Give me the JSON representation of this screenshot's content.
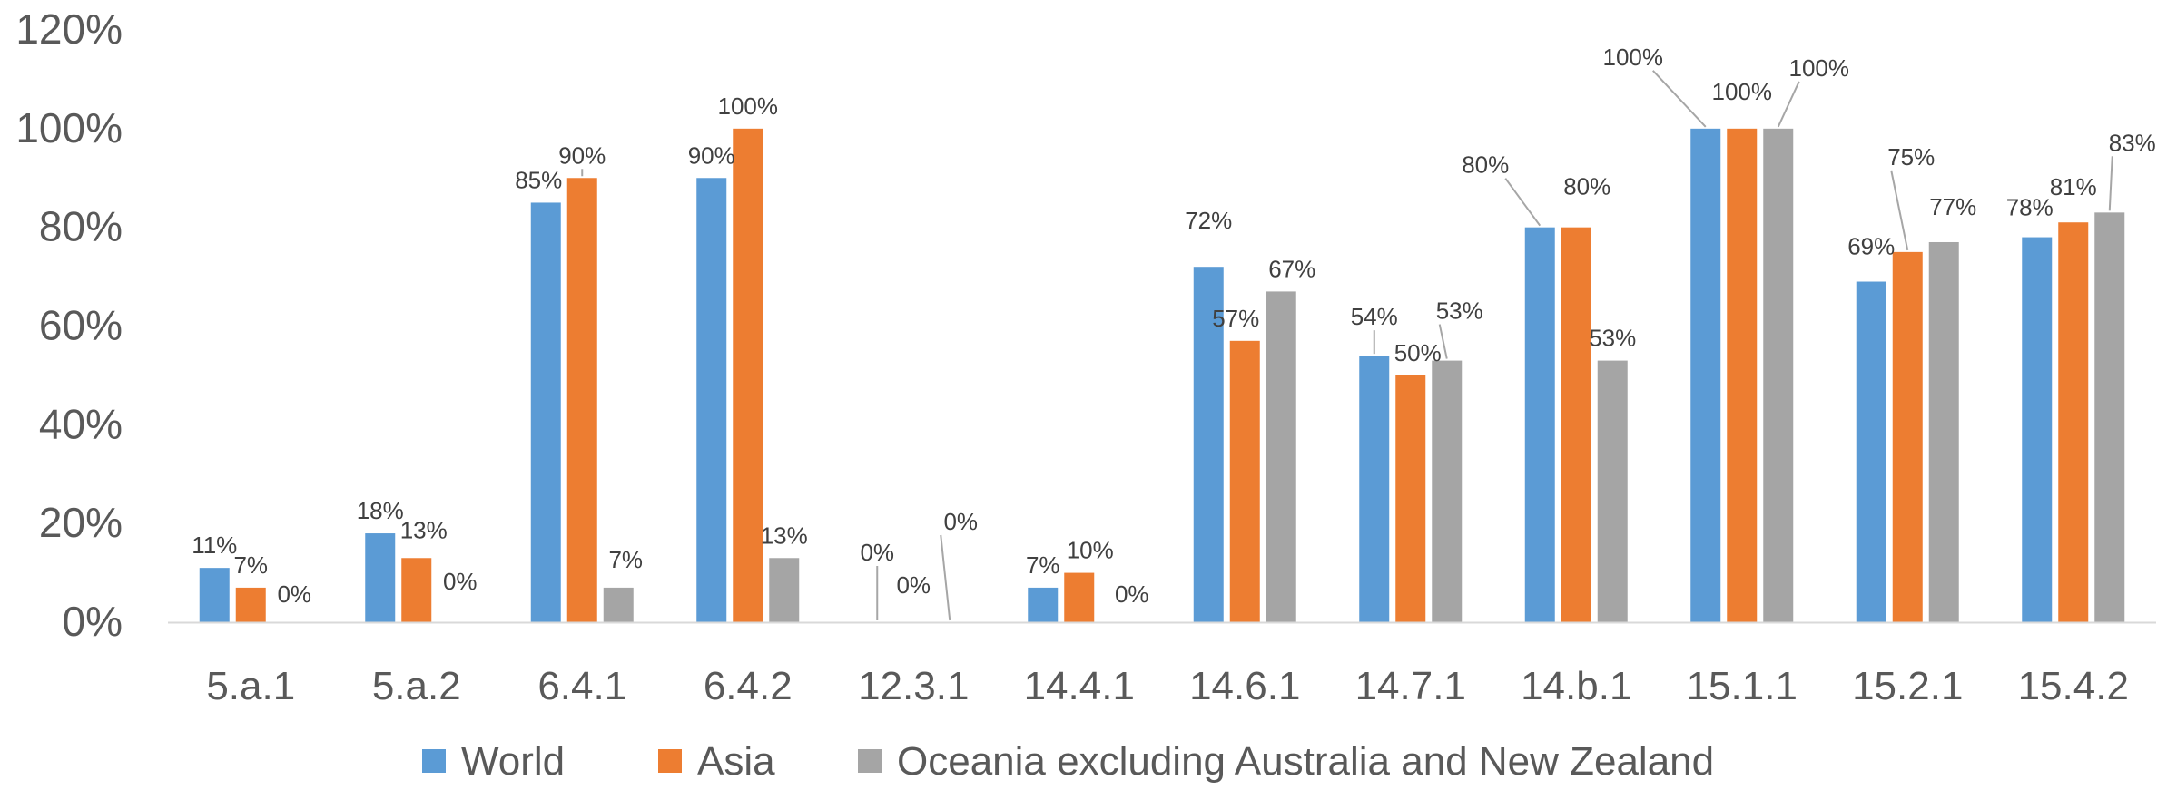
{
  "chart_data": {
    "type": "bar",
    "title": "",
    "xlabel": "",
    "ylabel": "",
    "categories": [
      "5.a.1",
      "5.a.2",
      "6.4.1",
      "6.4.2",
      "12.3.1",
      "14.4.1",
      "14.6.1",
      "14.7.1",
      "14.b.1",
      "15.1.1",
      "15.2.1",
      "15.4.2"
    ],
    "series": [
      {
        "name": "World",
        "color": "#5B9BD5",
        "values": [
          11,
          18,
          85,
          90,
          0,
          7,
          72,
          54,
          80,
          100,
          69,
          78
        ],
        "labels": [
          "11%",
          "18%",
          "85%",
          "90%",
          "0%",
          "7%",
          "72%",
          "54%",
          "80%",
          "100%",
          "69%",
          "78%"
        ]
      },
      {
        "name": "Asia",
        "color": "#ED7D31",
        "values": [
          7,
          13,
          90,
          100,
          0,
          10,
          57,
          50,
          80,
          100,
          75,
          81
        ],
        "labels": [
          "7%",
          "13%",
          "90%",
          "100%",
          "0%",
          "10%",
          "57%",
          "50%",
          "80%",
          "100%",
          "75%",
          "81%"
        ]
      },
      {
        "name": "Oceania excluding Australia and New Zealand",
        "color": "#A5A5A5",
        "values": [
          0,
          0,
          7,
          13,
          0,
          0,
          67,
          53,
          53,
          100,
          77,
          83
        ],
        "labels": [
          "0%",
          "0%",
          "7%",
          "13%",
          "0%",
          "0%",
          "67%",
          "53%",
          "53%",
          "100%",
          "77%",
          "83%"
        ]
      }
    ],
    "ylim": [
      0,
      120
    ],
    "yticks": [
      "0%",
      "20%",
      "40%",
      "60%",
      "80%",
      "100%",
      "120%"
    ],
    "grid": false,
    "legend": "bottom"
  }
}
